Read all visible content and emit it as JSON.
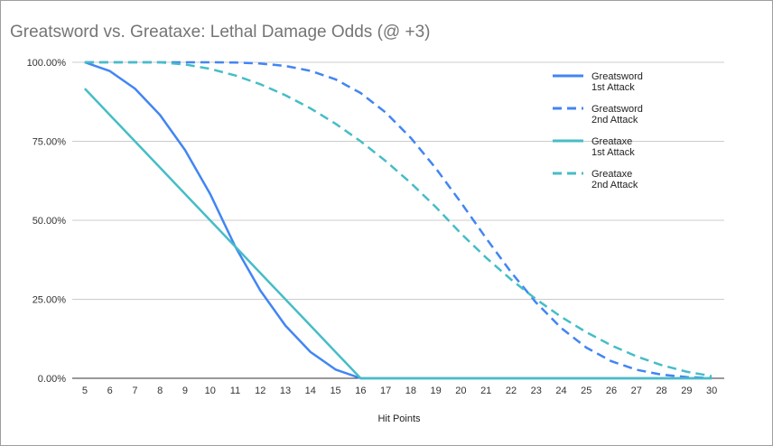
{
  "chart_data": {
    "type": "line",
    "title": "Greatsword vs. Greataxe: Lethal Damage Odds (@ +3)",
    "xlabel": "Hit Points",
    "ylabel": "",
    "x": [
      5,
      6,
      7,
      8,
      9,
      10,
      11,
      12,
      13,
      14,
      15,
      16,
      17,
      18,
      19,
      20,
      21,
      22,
      23,
      24,
      25,
      26,
      27,
      28,
      29,
      30
    ],
    "ylim": [
      0,
      1
    ],
    "yticks": [
      "0.00%",
      "25.00%",
      "50.00%",
      "75.00%",
      "100.00%"
    ],
    "grid": true,
    "legend": "right",
    "series": [
      {
        "name": "Greatsword 1st Attack",
        "color": "#4285f4",
        "dash": false,
        "values": [
          1,
          0.9722,
          0.9167,
          0.8333,
          0.7222,
          0.5833,
          0.4167,
          0.2778,
          0.1667,
          0.0833,
          0.0278,
          0,
          0,
          0,
          0,
          0,
          0,
          0,
          0,
          0,
          0,
          0,
          0,
          0,
          0,
          0
        ]
      },
      {
        "name": "Greatsword 2nd Attack",
        "color": "#4285f4",
        "dash": true,
        "values": [
          1,
          1,
          1,
          1,
          1,
          1,
          0.9992,
          0.9961,
          0.9884,
          0.973,
          0.946,
          0.9028,
          0.841,
          0.7608,
          0.6644,
          0.5563,
          0.4437,
          0.3356,
          0.2392,
          0.159,
          0.0972,
          0.054,
          0.027,
          0.0116,
          0.0039,
          0.0008
        ]
      },
      {
        "name": "Greataxe 1st Attack",
        "color": "#46bdc6",
        "dash": false,
        "values": [
          0.9167,
          0.8333,
          0.75,
          0.6667,
          0.5833,
          0.5,
          0.4167,
          0.3333,
          0.25,
          0.1667,
          0.0833,
          0,
          0,
          0,
          0,
          0,
          0,
          0,
          0,
          0,
          0,
          0,
          0,
          0,
          0,
          0
        ]
      },
      {
        "name": "Greataxe 2nd Attack",
        "color": "#46bdc6",
        "dash": true,
        "values": [
          1,
          1,
          1,
          1,
          0.9931,
          0.9792,
          0.9583,
          0.9306,
          0.8958,
          0.8542,
          0.8056,
          0.75,
          0.6875,
          0.6181,
          0.5417,
          0.4583,
          0.3819,
          0.3125,
          0.25,
          0.1944,
          0.1458,
          0.1042,
          0.0694,
          0.0417,
          0.0208,
          0.0069
        ]
      }
    ],
    "legend_labels": [
      [
        "Greatsword",
        "1st Attack"
      ],
      [
        "Greatsword",
        "2nd Attack"
      ],
      [
        "Greataxe",
        "1st Attack"
      ],
      [
        "Greataxe",
        "2nd Attack"
      ]
    ]
  }
}
